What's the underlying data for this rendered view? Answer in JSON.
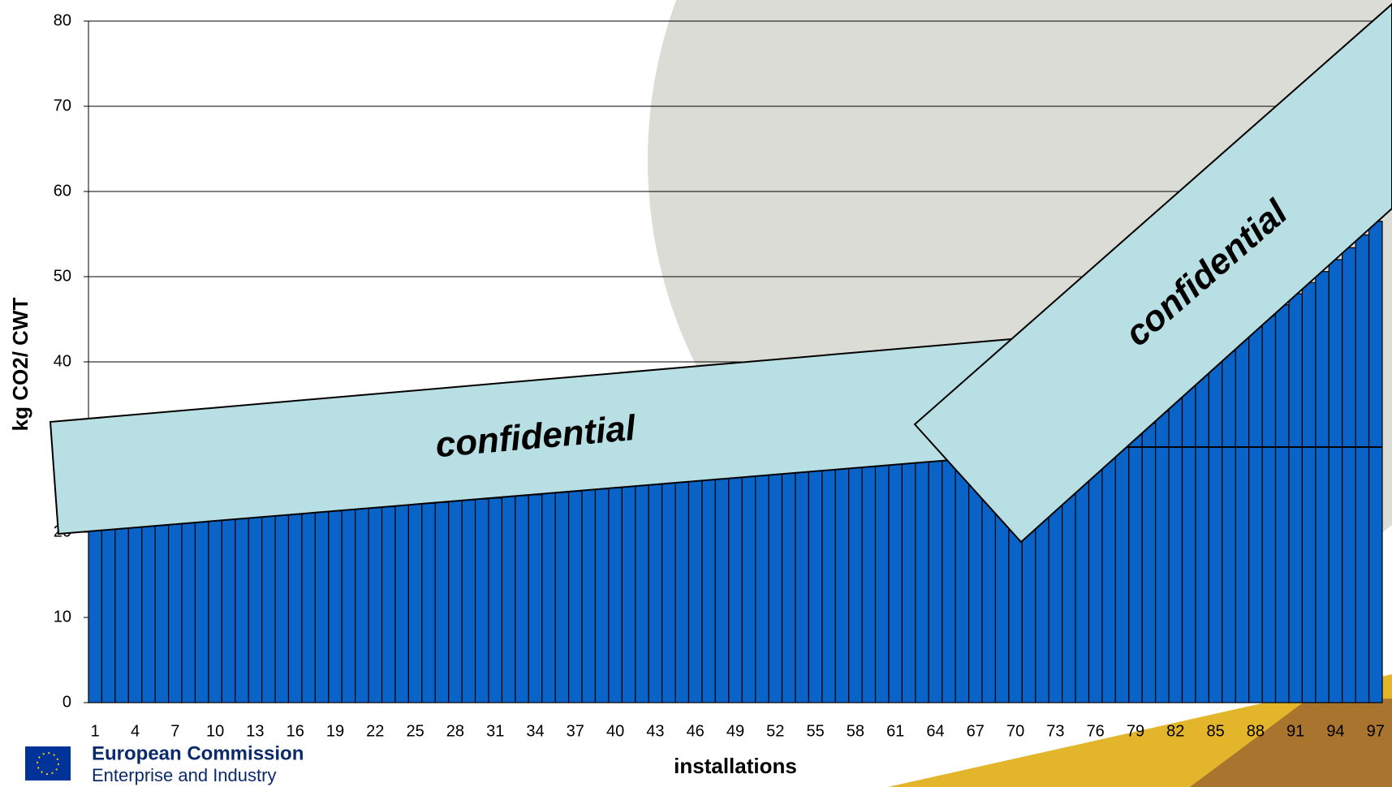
{
  "chart_data": {
    "type": "bar",
    "y_label": "kg CO2/ CWT",
    "x_label": "installations",
    "categories": [
      1,
      null,
      null,
      4,
      null,
      null,
      7,
      null,
      null,
      10,
      null,
      null,
      13,
      null,
      null,
      16,
      null,
      null,
      19,
      null,
      null,
      22,
      null,
      null,
      25,
      null,
      null,
      28,
      null,
      null,
      31,
      null,
      null,
      34,
      null,
      null,
      37,
      null,
      null,
      40,
      null,
      null,
      43,
      null,
      null,
      46,
      null,
      null,
      49,
      null,
      null,
      52,
      null,
      null,
      55,
      null,
      null,
      58,
      null,
      null,
      61,
      null,
      null,
      64,
      null,
      null,
      67,
      null,
      null,
      70,
      null,
      null,
      73,
      null,
      null,
      76,
      null,
      null,
      79,
      null,
      null,
      82,
      null,
      null,
      85,
      null,
      null,
      88,
      null,
      null,
      91,
      null,
      null,
      94,
      null,
      null,
      97
    ],
    "values": [
      20.2,
      20.3,
      20.5,
      20.6,
      20.7,
      20.9,
      21.0,
      21.1,
      21.3,
      21.4,
      21.5,
      21.6,
      21.8,
      21.9,
      22.0,
      22.1,
      22.3,
      22.4,
      22.5,
      22.7,
      22.8,
      22.9,
      23.0,
      23.2,
      23.3,
      23.4,
      23.5,
      23.7,
      23.8,
      23.9,
      24.0,
      24.2,
      24.3,
      24.4,
      24.6,
      24.7,
      24.8,
      25.0,
      25.1,
      25.2,
      25.4,
      25.5,
      25.6,
      25.8,
      25.9,
      26.0,
      26.2,
      26.3,
      26.5,
      26.6,
      26.8,
      26.9,
      27.1,
      27.2,
      27.4,
      27.5,
      27.7,
      27.8,
      28.0,
      28.1,
      28.3,
      28.4,
      28.6,
      28.7,
      28.9,
      29.0,
      29.2,
      29.3,
      29.5,
      29.6,
      29.8,
      29.9,
      30.1,
      30.3,
      30.5,
      30.7,
      30.9,
      31.1,
      31.5,
      32.8,
      34.2,
      35.7,
      37.2,
      38.7,
      40.2,
      41.5,
      42.8,
      44.1,
      45.4,
      46.7,
      48.0,
      49.3,
      50.6,
      52.0,
      53.4,
      54.9,
      56.5
    ],
    "color": "#0a64c8",
    "ylim": [
      0,
      80
    ],
    "yticks": [
      0,
      10,
      20,
      30,
      40,
      50,
      60,
      70,
      80
    ],
    "grid": true,
    "reference_line": {
      "value": 30,
      "x_start": 78
    }
  },
  "overlays": [
    "confidential",
    "confidential"
  ],
  "logo": {
    "title": "European Commission",
    "subtitle": "Enterprise and Industry"
  }
}
